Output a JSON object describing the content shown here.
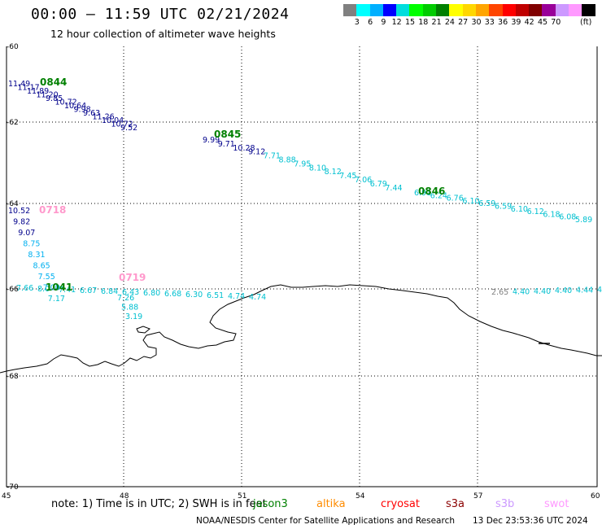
{
  "header": {
    "title": "00:00 – 11:59 UTC 02/21/2024",
    "subtitle": "12 hour collection of altimeter wave heights"
  },
  "legend": {
    "colors": [
      "#808080",
      "#00ffff",
      "#00b0ff",
      "#0000ff",
      "#00dddd",
      "#00ff00",
      "#00cc00",
      "#008000",
      "#ffff00",
      "#ffd700",
      "#ffa500",
      "#ff4500",
      "#ff0000",
      "#c00000",
      "#800000",
      "#990099",
      "#cc99ff",
      "#ff99ff",
      "#000000"
    ],
    "labels": [
      "3",
      "6",
      "9",
      "12",
      "15",
      "18",
      "21",
      "24",
      "27",
      "30",
      "33",
      "36",
      "39",
      "42",
      "45",
      "70"
    ],
    "unit": "(ft)"
  },
  "axes": {
    "lat_labels": [
      "-60",
      "-62",
      "-64",
      "-66",
      "-68",
      "-70"
    ],
    "lon_labels": [
      "45",
      "48",
      "51",
      "54",
      "57",
      "60"
    ]
  },
  "passes": [
    {
      "time": "0844",
      "color": "#008000",
      "labels": [
        {
          "t": "11.49",
          "c": "#00008b"
        },
        {
          "t": "11.17",
          "c": "#00008b"
        },
        {
          "t": "11.89",
          "c": "#00008b"
        },
        {
          "t": "11.20",
          "c": "#00008b"
        },
        {
          "t": "9.85",
          "c": "#00008b"
        },
        {
          "t": "10.72",
          "c": "#00008b"
        },
        {
          "t": "10.64",
          "c": "#00008b"
        },
        {
          "t": "9.98",
          "c": "#00008b"
        },
        {
          "t": "9.63",
          "c": "#00008b"
        },
        {
          "t": "11.26",
          "c": "#00008b"
        },
        {
          "t": "10.04",
          "c": "#00008b"
        },
        {
          "t": "10.72",
          "c": "#00008b"
        },
        {
          "t": "9.52",
          "c": "#00008b"
        }
      ]
    },
    {
      "time": "0845",
      "color": "#008000",
      "labels": [
        {
          "t": "9.99",
          "c": "#00008b"
        },
        {
          "t": "9.71",
          "c": "#00008b"
        },
        {
          "t": "10.28",
          "c": "#00008b"
        },
        {
          "t": "9.12",
          "c": "#00008b"
        },
        {
          "t": "7.71",
          "c": "#00c0d0"
        },
        {
          "t": "8.88",
          "c": "#00c0d0"
        },
        {
          "t": "7.95",
          "c": "#00c0d0"
        },
        {
          "t": "8.10",
          "c": "#00c0d0"
        },
        {
          "t": "8.12",
          "c": "#00c0d0"
        },
        {
          "t": "7.45",
          "c": "#00c0d0"
        },
        {
          "t": "7.06",
          "c": "#00c0d0"
        },
        {
          "t": "6.79",
          "c": "#00c0d0"
        },
        {
          "t": "7.44",
          "c": "#00c0d0"
        }
      ]
    },
    {
      "time": "0846",
      "color": "#008000",
      "labels": [
        {
          "t": "6.91",
          "c": "#00c0d0"
        },
        {
          "t": "6.24",
          "c": "#00c0d0"
        },
        {
          "t": "6.76",
          "c": "#00c0d0"
        },
        {
          "t": "6.10",
          "c": "#00c0d0"
        },
        {
          "t": "6.59",
          "c": "#00c0d0"
        },
        {
          "t": "6.59",
          "c": "#00c0d0"
        },
        {
          "t": "6.10",
          "c": "#00c0d0"
        },
        {
          "t": "6.12",
          "c": "#00c0d0"
        },
        {
          "t": "6.18",
          "c": "#00c0d0"
        },
        {
          "t": "6.08",
          "c": "#00c0d0"
        },
        {
          "t": "5.89",
          "c": "#00c0d0"
        }
      ]
    },
    {
      "time": "0718",
      "color": "#ff99cc",
      "labels": [
        {
          "t": "10.52",
          "c": "#00008b"
        },
        {
          "t": "9.82",
          "c": "#00008b"
        },
        {
          "t": "9.07",
          "c": "#00008b"
        },
        {
          "t": "8.75",
          "c": "#00b0f0"
        },
        {
          "t": "8.31",
          "c": "#00b0f0"
        },
        {
          "t": "8.65",
          "c": "#00b0f0"
        },
        {
          "t": "7.55",
          "c": "#00b0f0"
        },
        {
          "t": "7.00",
          "c": "#00b0f0"
        },
        {
          "t": "7.17",
          "c": "#00c0d0"
        }
      ]
    },
    {
      "time": "0719",
      "color": "#ff99cc",
      "labels": [
        {
          "t": "7.26",
          "c": "#00c0d0"
        },
        {
          "t": "5.88",
          "c": "#00c0d0"
        },
        {
          "t": "3.19",
          "c": "#00c0d0"
        }
      ]
    },
    {
      "time": "1041",
      "color": "#008000",
      "labels": [
        {
          "t": "7.66",
          "c": "#00c0d0"
        },
        {
          "t": "8.0",
          "c": "#00c0d0"
        },
        {
          "t": "7.41",
          "c": "#00c0d0"
        },
        {
          "t": "6.67",
          "c": "#00c0d0"
        },
        {
          "t": "6.84",
          "c": "#00c0d0"
        },
        {
          "t": "6.43",
          "c": "#00c0d0"
        },
        {
          "t": "6.80",
          "c": "#00c0d0"
        },
        {
          "t": "6.68",
          "c": "#00c0d0"
        },
        {
          "t": "6.30",
          "c": "#00c0d0"
        },
        {
          "t": "6.51",
          "c": "#00c0d0"
        },
        {
          "t": "4.74",
          "c": "#00c0d0"
        },
        {
          "t": "4.74",
          "c": "#00c0d0"
        }
      ]
    },
    {
      "time": "",
      "color": "#000000",
      "labels": [
        {
          "t": "2.65",
          "c": "#808080"
        },
        {
          "t": "4.40",
          "c": "#00c0d0"
        },
        {
          "t": "4.40",
          "c": "#00c0d0"
        },
        {
          "t": "4.40",
          "c": "#00c0d0"
        },
        {
          "t": "4.44",
          "c": "#00c0d0"
        },
        {
          "t": "4.21",
          "c": "#00c0d0"
        }
      ]
    }
  ],
  "footer": {
    "note": "note: 1) Time is in UTC; 2) SWH is in feet",
    "satellites": [
      {
        "name": "jason3",
        "color": "#008000"
      },
      {
        "name": "altika",
        "color": "#ff8c00"
      },
      {
        "name": "cryosat",
        "color": "#ff0000"
      },
      {
        "name": "s3a",
        "color": "#8b0000"
      },
      {
        "name": "s3b",
        "color": "#cc99ff"
      },
      {
        "name": "swot",
        "color": "#ff99ff"
      }
    ],
    "credit": "NOAA/NESDIS Center for Satellite Applications and Research",
    "timestamp": "13 Dec 23:53:36 UTC 2024"
  }
}
